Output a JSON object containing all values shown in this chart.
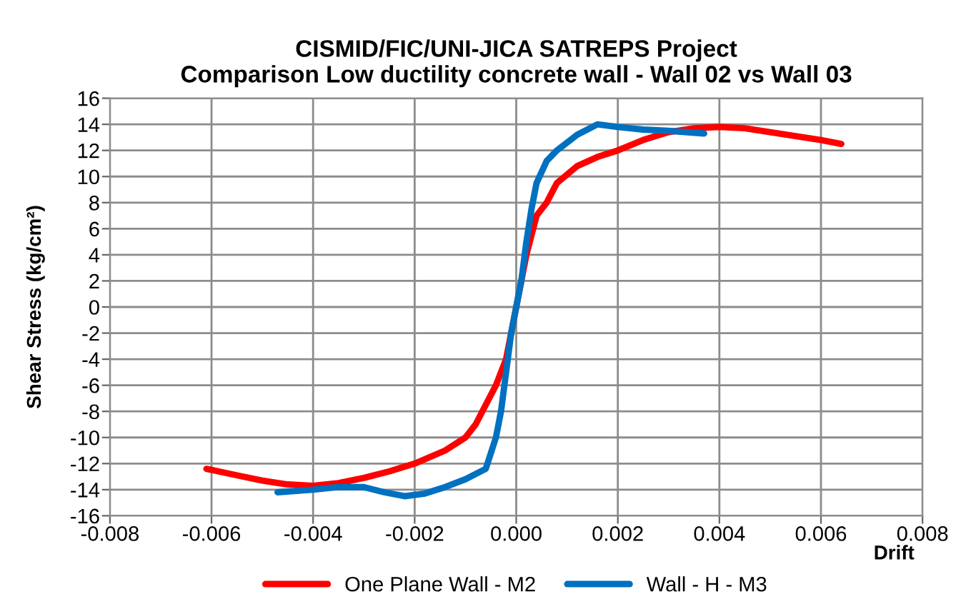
{
  "chart_data": {
    "type": "line",
    "title": "CISMID/FIC/UNI-JICA SATREPS Project\nComparison Low ductility concrete wall - Wall 02 vs Wall 03",
    "xlabel": "Drift",
    "ylabel": "Shear Stress (kg/cm²)",
    "xlim": [
      -0.008,
      0.008
    ],
    "xticks": [
      {
        "value": -0.008,
        "label": "-0.008"
      },
      {
        "value": -0.006,
        "label": "-0.006"
      },
      {
        "value": -0.004,
        "label": "-0.004"
      },
      {
        "value": -0.002,
        "label": "-0.002"
      },
      {
        "value": 0,
        "label": "0.000"
      },
      {
        "value": 0.002,
        "label": "0.002"
      },
      {
        "value": 0.004,
        "label": "0.004"
      },
      {
        "value": 0.006,
        "label": "0.006"
      },
      {
        "value": 0.008,
        "label": "0.008"
      }
    ],
    "ylim": [
      -16,
      16
    ],
    "yticks": [
      -16,
      -14,
      -12,
      -10,
      -8,
      -6,
      -4,
      -2,
      0,
      2,
      4,
      6,
      8,
      10,
      12,
      14,
      16
    ],
    "grid": true,
    "legend": "bottom",
    "marker": "none",
    "line_style": "solid",
    "series": [
      {
        "name": "One Plane Wall - M2",
        "color": "#ff0000",
        "x": [
          -0.0061,
          -0.0055,
          -0.005,
          -0.0045,
          -0.004,
          -0.0035,
          -0.003,
          -0.0025,
          -0.002,
          -0.0014,
          -0.001,
          -0.0008,
          -0.0006,
          -0.0004,
          -0.0002,
          -0.0001,
          0,
          0.0002,
          0.0004,
          0.0006,
          0.0008,
          0.0012,
          0.0016,
          0.002,
          0.0025,
          0.003,
          0.0035,
          0.004,
          0.0045,
          0.005,
          0.0055,
          0.006,
          0.0064
        ],
        "values": [
          -12.4,
          -12.9,
          -13.3,
          -13.6,
          -13.7,
          -13.5,
          -13.1,
          -12.6,
          -12,
          -11,
          -10,
          -9,
          -7.5,
          -6,
          -4,
          -2,
          0,
          4,
          7,
          8,
          9.5,
          10.8,
          11.5,
          12,
          12.8,
          13.4,
          13.7,
          13.8,
          13.7,
          13.4,
          13.1,
          12.8,
          12.5
        ]
      },
      {
        "name": "Wall - H - M3",
        "color": "#0070c0",
        "x": [
          -0.0047,
          -0.004,
          -0.0035,
          -0.003,
          -0.0026,
          -0.0022,
          -0.0018,
          -0.0014,
          -0.001,
          -0.0006,
          -0.0004,
          -0.0003,
          -0.0002,
          -0.0001,
          0,
          0.0001,
          0.0002,
          0.0003,
          0.0004,
          0.0006,
          0.0008,
          0.0012,
          0.0016,
          0.002,
          0.0025,
          0.003,
          0.0037
        ],
        "values": [
          -14.2,
          -14,
          -13.8,
          -13.8,
          -14.2,
          -14.5,
          -14.3,
          -13.8,
          -13.2,
          -12.4,
          -10,
          -8,
          -5,
          -2,
          0,
          2,
          5,
          7.5,
          9.5,
          11.2,
          12,
          13.2,
          14,
          13.8,
          13.6,
          13.5,
          13.3
        ]
      }
    ]
  }
}
